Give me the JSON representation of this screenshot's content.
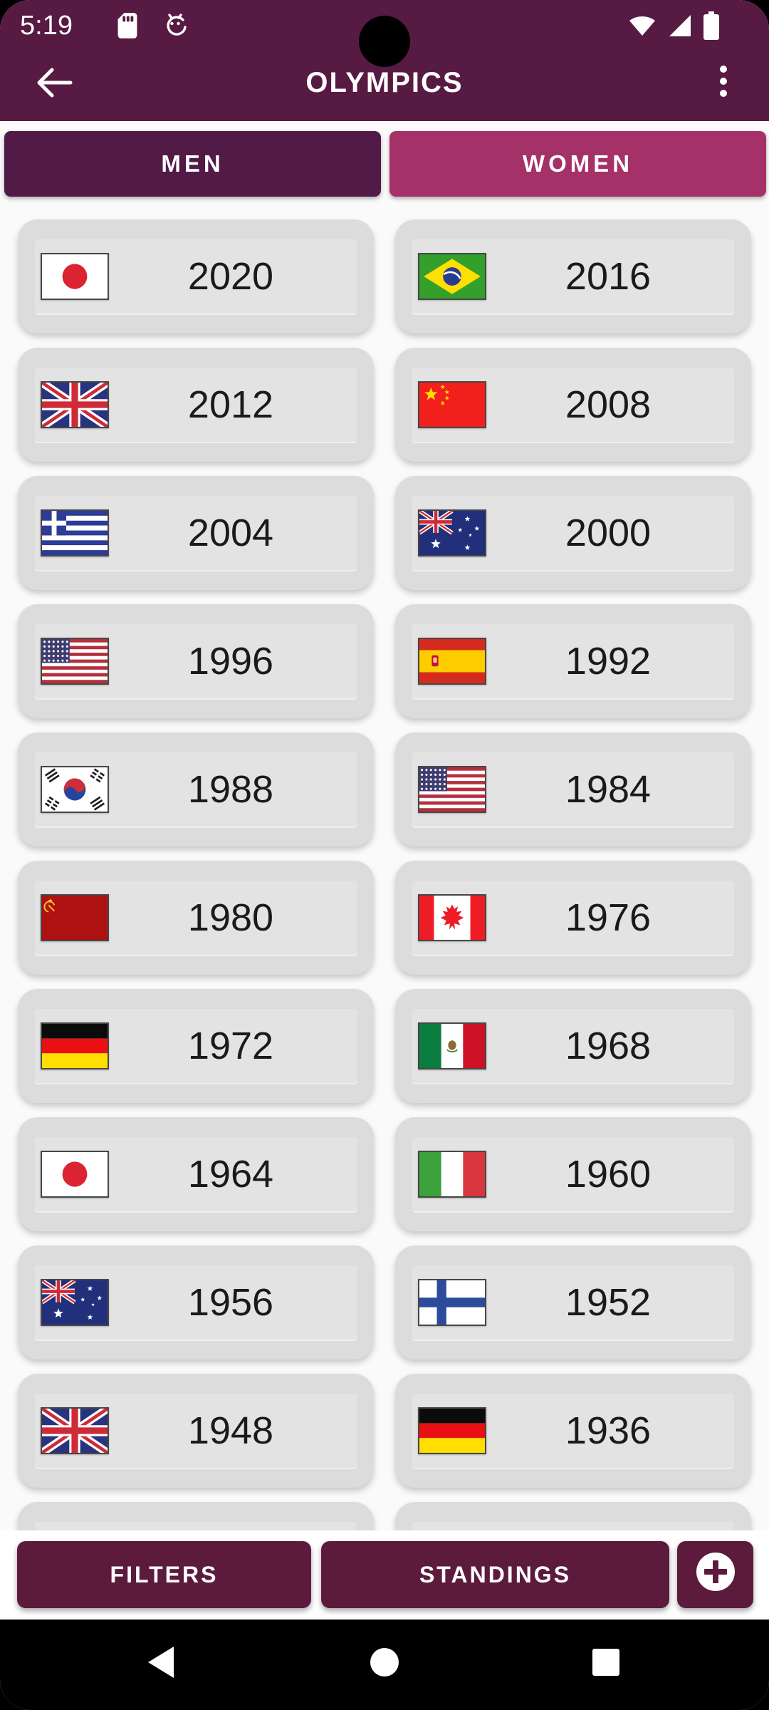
{
  "colors": {
    "header": "#571A42",
    "tab_men": "#521A46",
    "tab_women": "#A53169",
    "page_bg": "#FAFAFA",
    "card_bg": "#DCDCDC",
    "card_inner": "#E3E3E3",
    "year_text": "#1A1A1A",
    "action_button": "#5C1B3D",
    "nav_bar": "#000000"
  },
  "status_bar": {
    "time": "5:19",
    "left_icons": [
      "sim-card-icon",
      "android-robot-icon"
    ],
    "right_icons": [
      "wifi-icon",
      "cell-signal-icon",
      "battery-icon"
    ]
  },
  "app_bar": {
    "title": "OLYMPICS",
    "back_icon": "arrow-left-icon",
    "menu_icon": "kebab-menu-icon"
  },
  "tabs": {
    "men_label": "MEN",
    "women_label": "WOMEN",
    "selected": "WOMEN"
  },
  "years": {
    "items": [
      {
        "year": "2020",
        "flag": "japan-flag"
      },
      {
        "year": "2016",
        "flag": "brazil-flag"
      },
      {
        "year": "2012",
        "flag": "uk-flag"
      },
      {
        "year": "2008",
        "flag": "china-flag"
      },
      {
        "year": "2004",
        "flag": "greece-flag"
      },
      {
        "year": "2000",
        "flag": "australia-flag"
      },
      {
        "year": "1996",
        "flag": "usa-flag"
      },
      {
        "year": "1992",
        "flag": "spain-flag"
      },
      {
        "year": "1988",
        "flag": "south-korea-flag"
      },
      {
        "year": "1984",
        "flag": "usa-flag"
      },
      {
        "year": "1980",
        "flag": "ussr-flag"
      },
      {
        "year": "1976",
        "flag": "canada-flag"
      },
      {
        "year": "1972",
        "flag": "germany-flag"
      },
      {
        "year": "1968",
        "flag": "mexico-flag"
      },
      {
        "year": "1964",
        "flag": "japan-flag"
      },
      {
        "year": "1960",
        "flag": "italy-flag"
      },
      {
        "year": "1956",
        "flag": "australia-flag"
      },
      {
        "year": "1952",
        "flag": "finland-flag"
      },
      {
        "year": "1948",
        "flag": "uk-flag"
      },
      {
        "year": "1936",
        "flag": "germany-flag"
      }
    ],
    "partial_cards": 2
  },
  "bottom_bar": {
    "filters_label": "FILTERS",
    "standings_label": "STANDINGS",
    "add_icon": "plus-icon"
  },
  "nav_bar": {
    "icons": [
      "back-triangle-icon",
      "home-circle-icon",
      "recents-square-icon"
    ]
  }
}
